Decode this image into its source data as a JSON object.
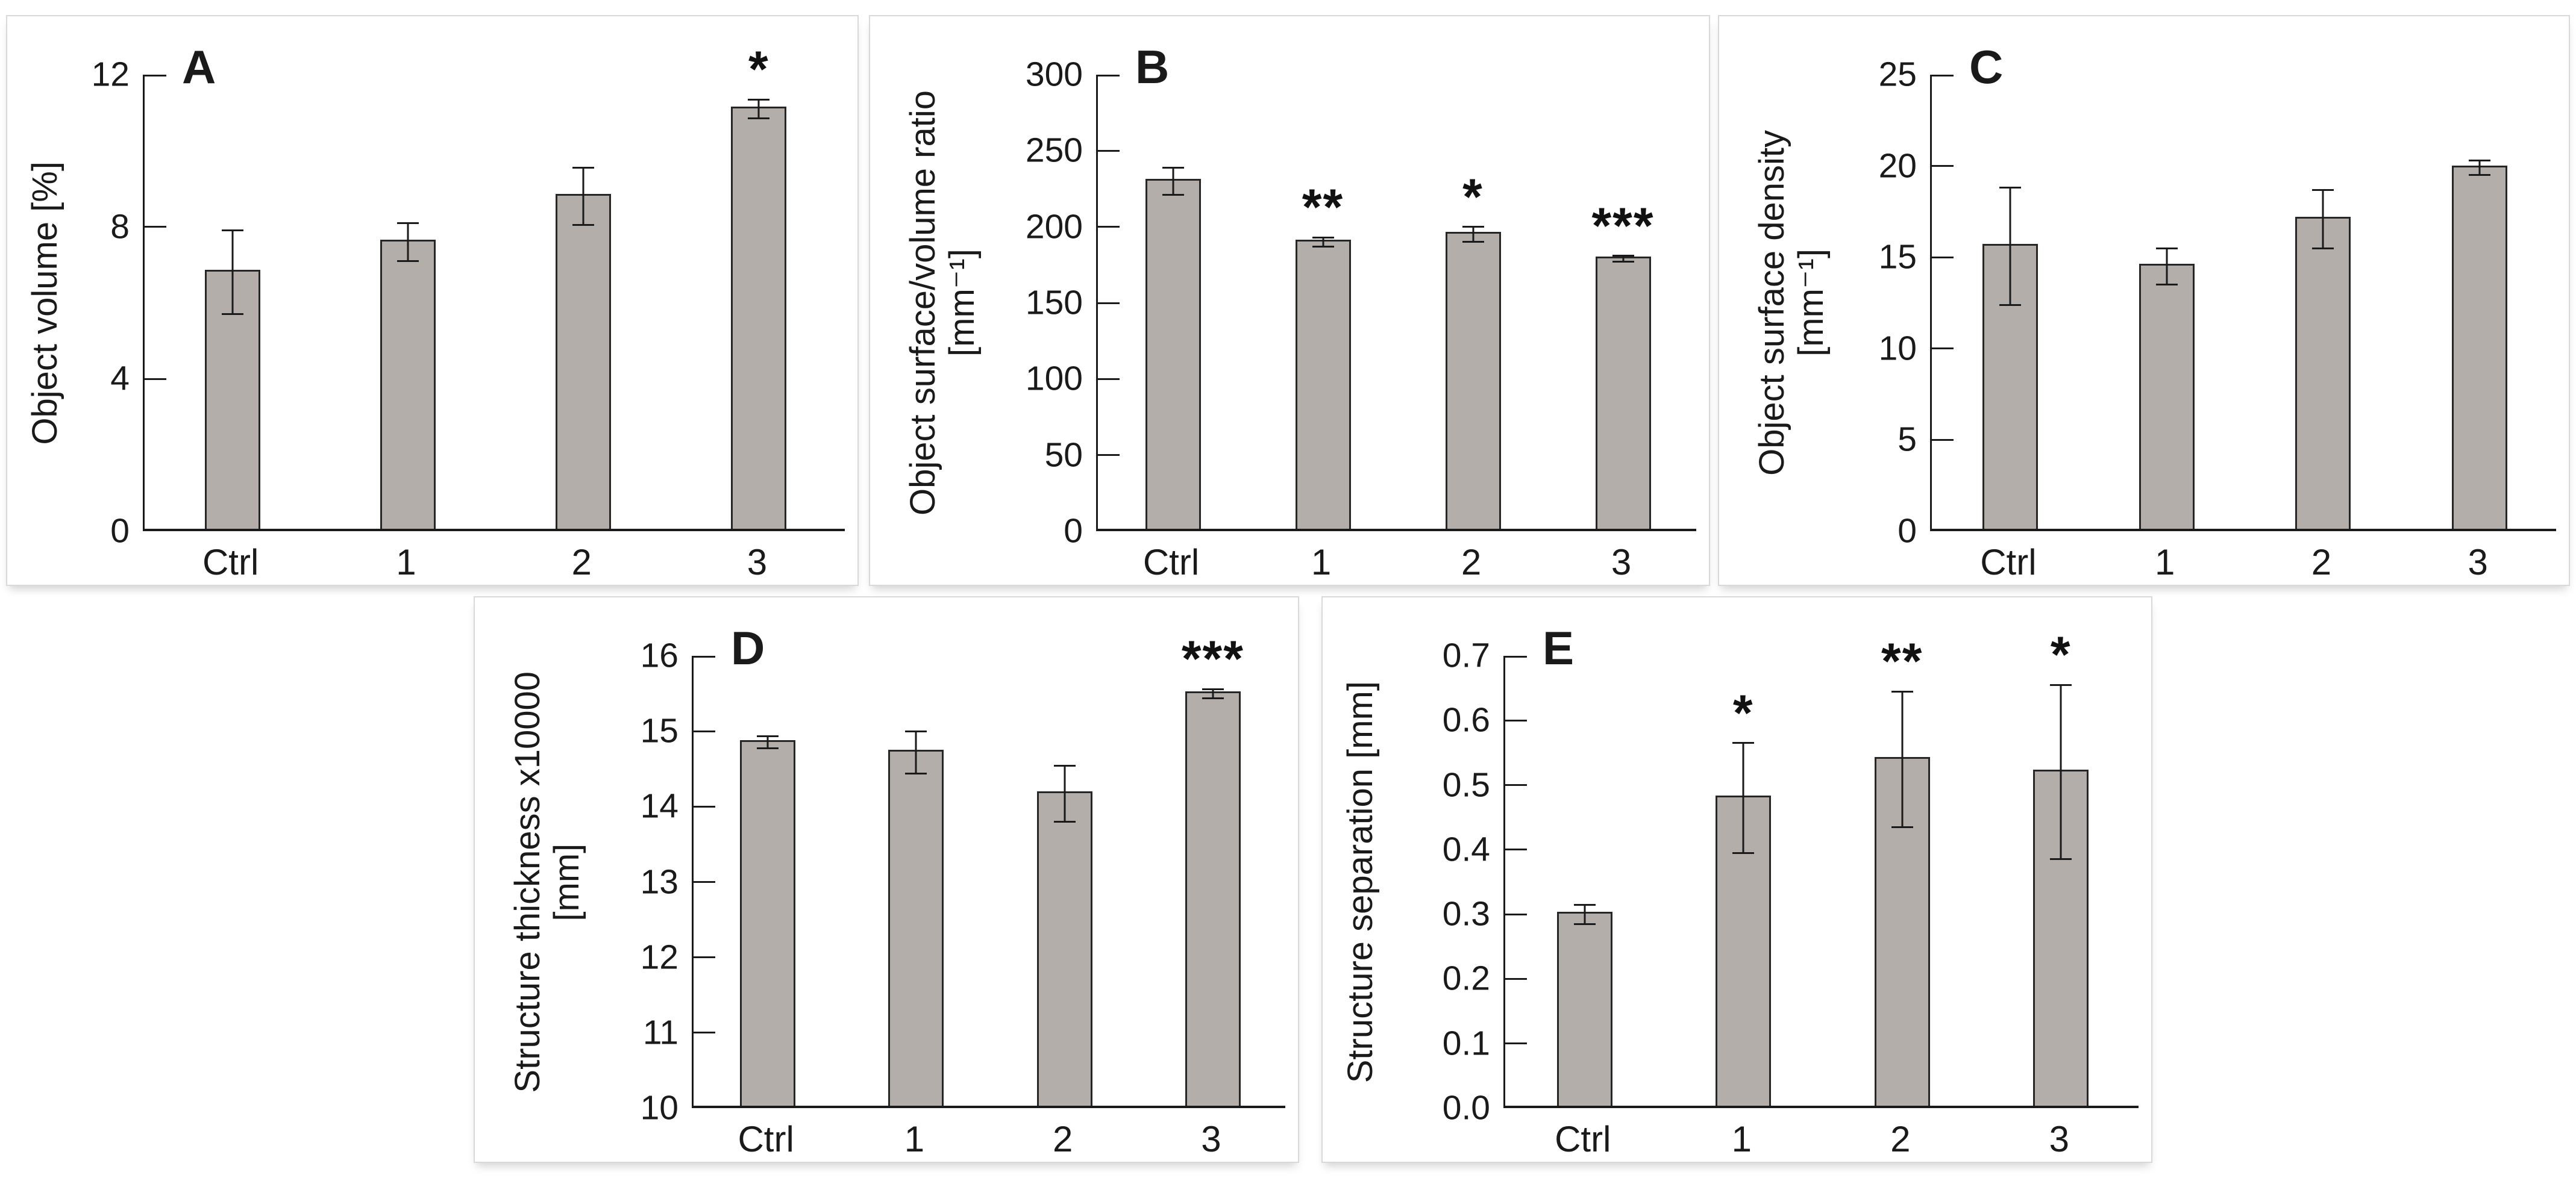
{
  "figure": {
    "background": "#ffffff",
    "panel_border_color": "#d9d9d9",
    "bar_fill": "#b3aea9",
    "bar_border": "#262626",
    "axis_color": "#1a1a1a",
    "text_color": "#1a1a1a"
  },
  "chart_data": [
    {
      "type": "bar",
      "panel_letter": "A",
      "ylabel_lines": [
        "Object volume [%]"
      ],
      "categories": [
        "Ctrl",
        "1",
        "2",
        "3"
      ],
      "values": [
        6.8,
        7.6,
        8.8,
        11.1
      ],
      "errors": [
        1.1,
        0.5,
        0.75,
        0.25
      ],
      "significance": [
        "",
        "",
        "",
        "*"
      ],
      "ylim": [
        0,
        12
      ],
      "ytick_step": 4,
      "ytick_decimals": 0,
      "grid": false,
      "legend": null
    },
    {
      "type": "bar",
      "panel_letter": "B",
      "ylabel_lines": [
        "Object surface/volume ratio",
        "[mm⁻¹]"
      ],
      "categories": [
        "Ctrl",
        "1",
        "2",
        "3"
      ],
      "values": [
        230,
        190,
        195,
        179
      ],
      "errors": [
        9,
        3,
        5,
        2
      ],
      "significance": [
        "",
        "**",
        "*",
        "***"
      ],
      "ylim": [
        0,
        300
      ],
      "ytick_step": 50,
      "ytick_decimals": 0,
      "grid": false,
      "legend": null
    },
    {
      "type": "bar",
      "panel_letter": "C",
      "ylabel_lines": [
        "Object surface density",
        "[mm⁻¹]"
      ],
      "categories": [
        "Ctrl",
        "1",
        "2",
        "3"
      ],
      "values": [
        15.6,
        14.5,
        17.1,
        19.9
      ],
      "errors": [
        3.2,
        1.0,
        1.6,
        0.4
      ],
      "significance": [
        "",
        "",
        "",
        ""
      ],
      "ylim": [
        0,
        25
      ],
      "ytick_step": 5,
      "ytick_decimals": 0,
      "grid": false,
      "legend": null
    },
    {
      "type": "bar",
      "panel_letter": "D",
      "ylabel_lines": [
        "Structure thickness x10000",
        "[mm]"
      ],
      "categories": [
        "Ctrl",
        "1",
        "2",
        "3"
      ],
      "values": [
        14.85,
        14.72,
        14.17,
        15.5
      ],
      "errors": [
        0.08,
        0.28,
        0.37,
        0.06
      ],
      "significance": [
        "",
        "",
        "",
        "***"
      ],
      "ylim": [
        10,
        16
      ],
      "ytick_step": 1,
      "ytick_decimals": 0,
      "grid": false,
      "legend": null
    },
    {
      "type": "bar",
      "panel_letter": "E",
      "ylabel_lines": [
        "Structure separation [mm]"
      ],
      "categories": [
        "Ctrl",
        "1",
        "2",
        "3"
      ],
      "values": [
        0.3,
        0.48,
        0.54,
        0.52
      ],
      "errors": [
        0.015,
        0.085,
        0.105,
        0.135
      ],
      "significance": [
        "",
        "*",
        "**",
        "*"
      ],
      "ylim": [
        0,
        0.7
      ],
      "ytick_step": 0.1,
      "ytick_decimals": 1,
      "grid": false,
      "legend": null
    }
  ]
}
